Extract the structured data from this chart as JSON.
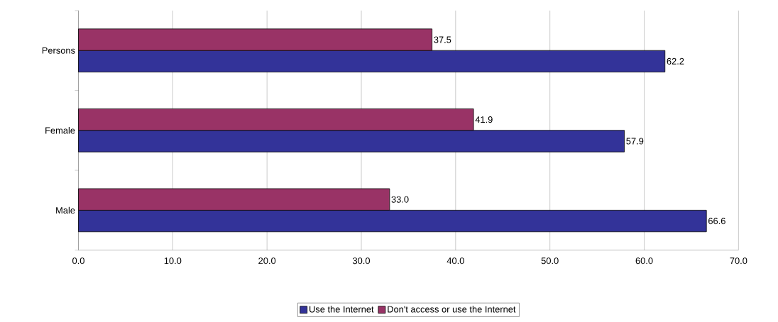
{
  "chart_data": {
    "type": "bar",
    "orientation": "horizontal",
    "categories": [
      "Persons",
      "Female",
      "Male"
    ],
    "series": [
      {
        "name": "Use the Internet",
        "color": "#333399",
        "values": [
          62.2,
          57.9,
          66.6
        ],
        "value_labels": [
          "62.2",
          "57.9",
          "66.6"
        ]
      },
      {
        "name": "Don't access or use the Internet",
        "color": "#993366",
        "values": [
          37.5,
          41.9,
          33.0
        ],
        "value_labels": [
          "37.5",
          "41.9",
          "33.0"
        ]
      }
    ],
    "xlim": [
      0,
      70
    ],
    "xticks": [
      {
        "value": 0,
        "label": "0.0"
      },
      {
        "value": 10,
        "label": "10.0"
      },
      {
        "value": 20,
        "label": "20.0"
      },
      {
        "value": 30,
        "label": "30.0"
      },
      {
        "value": 40,
        "label": "40.0"
      },
      {
        "value": 50,
        "label": "50.0"
      },
      {
        "value": 60,
        "label": "60.0"
      },
      {
        "value": 70,
        "label": "70.0"
      }
    ],
    "grid": "x",
    "legend": "bottom"
  }
}
